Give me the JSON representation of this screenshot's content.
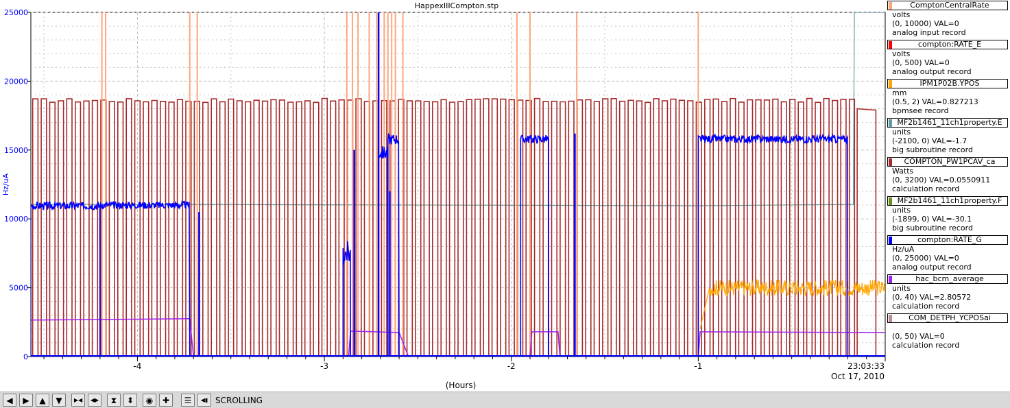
{
  "chart_data": {
    "type": "line",
    "title": "HappexIIICompton.stp",
    "ylabel": "Hz/uA",
    "xlabel": "(Hours)",
    "xlim": [
      -4.57,
      0
    ],
    "ylim": [
      0,
      25000
    ],
    "y_ticks": [
      0,
      5000,
      10000,
      15000,
      20000,
      25000
    ],
    "x_ticks": [
      -4,
      -3,
      -2,
      -1
    ],
    "end_time_label": "23:03:33",
    "end_date_label": "Oct 17, 2010",
    "grid": true,
    "series": [
      {
        "name": "ComptonCentralRate",
        "color": "#ffa57a",
        "scale": [
          0,
          10000
        ],
        "spikes": [
          -4.19,
          -4.17,
          -3.72,
          -3.68,
          -2.88,
          -2.85,
          -2.82,
          -2.76,
          -2.72,
          -2.68,
          -2.66,
          -2.64,
          -2.62,
          -2.58,
          -1.97,
          -1.9,
          -1.65,
          -1.0
        ]
      },
      {
        "name": "compton:RATE_E",
        "color": "#ff0000",
        "scale": [
          0,
          500
        ],
        "value": 0
      },
      {
        "name": "IPM1P02B.YPOS",
        "color": "#ffa500",
        "scale": [
          0.5,
          2
        ],
        "segments": [
          {
            "x0": -0.99,
            "x1": 0,
            "base": 5000,
            "noise": 600
          }
        ]
      },
      {
        "name": "MF2b1461_11ch1property.E",
        "color": "#5f9ea0",
        "scale": [
          -2100,
          0
        ],
        "points": [
          [
            -4.57,
            11050
          ],
          [
            -3.7,
            11050
          ],
          [
            -1.0,
            10950
          ],
          [
            -0.2,
            11050
          ],
          [
            -0.17,
            11050
          ],
          [
            -0.165,
            25000
          ],
          [
            0,
            25000
          ]
        ]
      },
      {
        "name": "COMPTON_PW1PCAV_ca",
        "color": "#a52a2a",
        "scale": [
          0,
          3200
        ],
        "pulse": {
          "start": -4.56,
          "period": 0.0455,
          "duty": 0.62,
          "high": 18600,
          "low": 0
        }
      },
      {
        "name": "MF2b1461_11ch1property.F",
        "color": "#6b8e23",
        "scale": [
          -1899,
          0
        ]
      },
      {
        "name": "compton:RATE_G",
        "color": "#0000ff",
        "scale": [
          0,
          25000
        ],
        "segments": [
          {
            "x0": -4.57,
            "x1": -4.2,
            "base": 10950,
            "noise": 280
          },
          {
            "x0": -4.2,
            "x1": -3.72,
            "base": 11000,
            "noise": 260
          },
          {
            "x0": -2.9,
            "x1": -2.86,
            "base": 7500,
            "noise": 900
          },
          {
            "x0": -2.71,
            "x1": -2.66,
            "base": 14800,
            "noise": 500
          },
          {
            "x0": -2.66,
            "x1": -2.6,
            "base": 15800,
            "noise": 400
          },
          {
            "x0": -1.95,
            "x1": -1.8,
            "base": 15800,
            "noise": 300
          },
          {
            "x0": -1.0,
            "x1": -0.2,
            "base": 15800,
            "noise": 280
          }
        ],
        "spikes": [
          [
            -2.71,
            25000
          ],
          [
            -2.84,
            15000
          ],
          [
            -2.65,
            12000
          ],
          [
            -1.66,
            16200
          ],
          [
            -3.67,
            10500
          ]
        ]
      },
      {
        "name": "hac_bcm_average",
        "color": "#a020f0",
        "scale": [
          0,
          40
        ],
        "points": [
          [
            -4.57,
            2650
          ],
          [
            -3.72,
            2750
          ],
          [
            -3.7,
            0
          ],
          [
            -2.87,
            0
          ],
          [
            -2.86,
            1850
          ],
          [
            -2.6,
            1750
          ],
          [
            -2.55,
            0
          ],
          [
            -1.9,
            0
          ],
          [
            -1.89,
            1800
          ],
          [
            -1.75,
            1800
          ],
          [
            -1.74,
            0
          ],
          [
            -1.0,
            0
          ],
          [
            -0.99,
            1800
          ],
          [
            0,
            1750
          ]
        ]
      },
      {
        "name": "COM_DETPH_YCPOSai",
        "color": "#bc8f8f",
        "scale": [
          0,
          50
        ]
      }
    ]
  },
  "legend": [
    {
      "name": "ComptonCentralRate",
      "color": "#ffa57a",
      "units": "volts",
      "range": "(0, 10000) VAL=0",
      "record": "analog input record"
    },
    {
      "name": "compton:RATE_E",
      "color": "#ff0000",
      "units": "volts",
      "range": "(0, 500)  VAL=0",
      "record": "analog output record"
    },
    {
      "name": "IPM1P02B.YPOS",
      "color": "#ffa500",
      "units": "mm",
      "range": "(0.5, 2) VAL=0.827213",
      "record": "bpmsee record"
    },
    {
      "name": "MF2b1461_11ch1property.E",
      "color": "#5f9ea0",
      "units": "units",
      "range": "(-2100, 0) VAL=-1.7",
      "record": "big subroutine record"
    },
    {
      "name": "COMPTON_PW1PCAV_ca",
      "color": "#a52a2a",
      "units": "Watts",
      "range": "(0, 3200) VAL=0.0550911",
      "record": "calculation record"
    },
    {
      "name": "MF2b1461_11ch1property.F",
      "color": "#6b8e23",
      "units": "units",
      "range": "(-1899, 0) VAL=-30.1",
      "record": "big subroutine record"
    },
    {
      "name": "compton:RATE_G",
      "color": "#0000ff",
      "units": "Hz/uA",
      "range": "(0, 25000) VAL=0",
      "record": "analog output record"
    },
    {
      "name": "hac_bcm_average",
      "color": "#a020f0",
      "units": "units",
      "range": "(0, 40) VAL=2.80572",
      "record": "calculation record"
    },
    {
      "name": "COM_DETPH_YCPOSai",
      "color": "#bc8f8f",
      "units": "",
      "range": "(0, 50)  VAL=0",
      "record": "calculation record"
    }
  ],
  "toolbar": {
    "status": "SCROLLING",
    "buttons": [
      {
        "icon": "arrow-left-icon",
        "glyph": "◀"
      },
      {
        "icon": "arrow-right-icon",
        "glyph": "▶"
      },
      {
        "icon": "arrow-up-icon",
        "glyph": "▲"
      },
      {
        "icon": "arrow-down-icon",
        "glyph": "▼"
      },
      {
        "icon": "zoom-in-x-icon",
        "glyph": "▶◀"
      },
      {
        "icon": "zoom-out-x-icon",
        "glyph": "◀▶"
      },
      {
        "icon": "zoom-in-y-icon",
        "glyph": "⧗"
      },
      {
        "icon": "zoom-out-y-icon",
        "glyph": "⬍"
      },
      {
        "icon": "auto-scale-icon",
        "glyph": "◉"
      },
      {
        "icon": "add-icon",
        "glyph": "✚"
      },
      {
        "icon": "config-icon",
        "glyph": "☰"
      },
      {
        "icon": "scroll-end-icon",
        "glyph": "◀▮"
      }
    ]
  }
}
